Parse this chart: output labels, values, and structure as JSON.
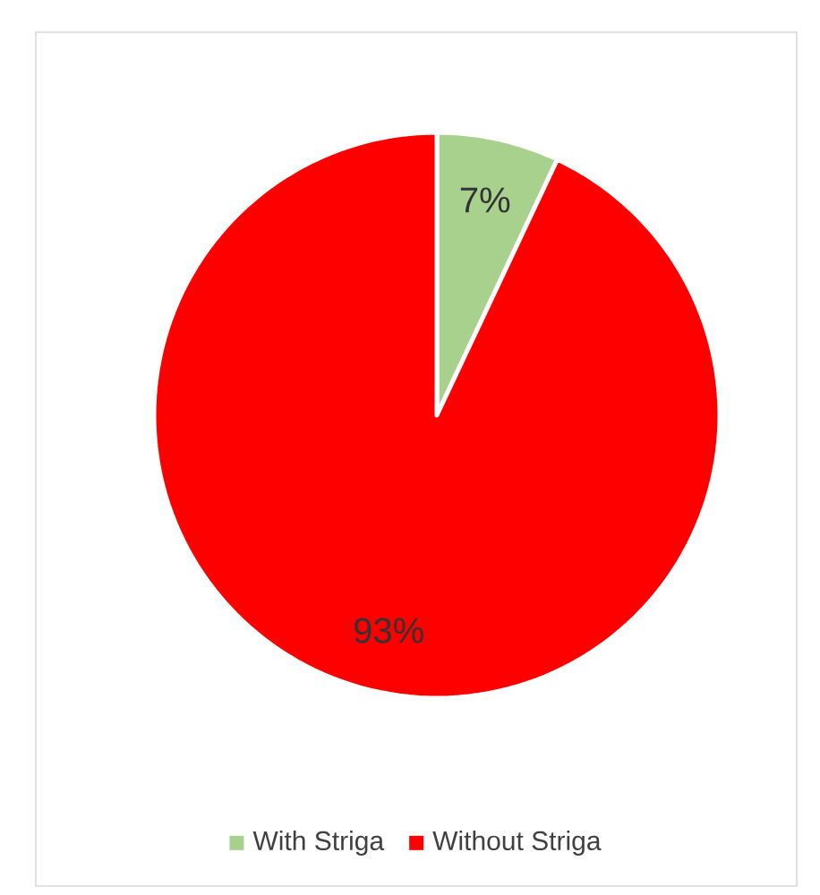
{
  "chart_data": {
    "type": "pie",
    "categories": [
      "With Striga",
      "Without Striga"
    ],
    "values": [
      7,
      93
    ],
    "colors": [
      "#a9d18e",
      "#ff0000"
    ],
    "value_labels": [
      "7%",
      "93%"
    ],
    "legend": "bottom"
  }
}
